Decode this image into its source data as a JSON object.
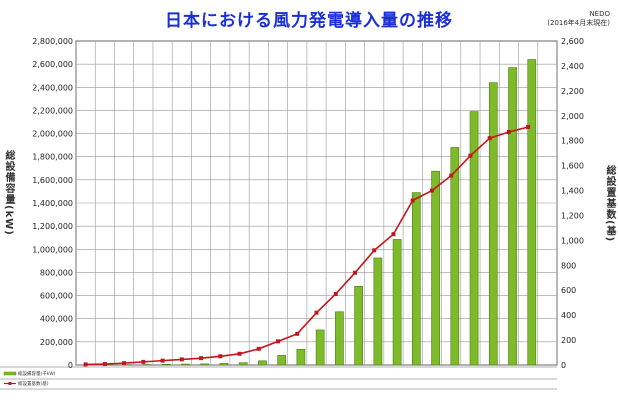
{
  "title": "日本における風力発電導入量の推移",
  "source": "NEDO\n(2016年4月末現在)",
  "chart_data": {
    "type": "bar",
    "title": "日本における風力発電導入量の推移",
    "ylabel_left": "総設備容量(kW)",
    "ylabel_right": "総設置基数(基)",
    "ylim_left": [
      0,
      2800000
    ],
    "ylim_right": [
      0,
      2600
    ],
    "yticks_left": [
      "0",
      "200,000",
      "400,000",
      "600,000",
      "800,000",
      "1,000,000",
      "1,200,000",
      "1,400,000",
      "1,600,000",
      "1,800,000",
      "2,000,000",
      "2,200,000",
      "2,400,000",
      "2,600,000",
      "2,800,000"
    ],
    "yticks_right": [
      "0",
      "200",
      "400",
      "600",
      "800",
      "1,000",
      "1,200",
      "1,400",
      "1,600",
      "1,800",
      "2,000",
      "2,200",
      "2,400",
      "2,600"
    ],
    "categories": [
      "",
      "",
      "",
      "",
      "",
      "",
      "",
      "",
      "",
      "",
      "",
      "",
      "",
      "",
      "",
      "",
      "",
      "",
      "",
      "",
      "",
      "",
      "",
      "",
      ""
    ],
    "series": [
      {
        "name": "総設備容量(kW)",
        "kind": "bar",
        "color": "#7dbb2a",
        "values": [
          1000,
          2000,
          3000,
          4000,
          6000,
          8000,
          10000,
          14000,
          20000,
          36000,
          83000,
          136000,
          303000,
          460000,
          680000,
          925000,
          1085000,
          1490000,
          1675000,
          1880000,
          2190000,
          2440000,
          2570000,
          2640000,
          0
        ]
      },
      {
        "name": "総設置基数(基)",
        "kind": "line",
        "color": "#c4161c",
        "values": [
          5,
          8,
          15,
          25,
          35,
          45,
          55,
          70,
          90,
          130,
          190,
          250,
          420,
          570,
          740,
          920,
          1050,
          1320,
          1400,
          1520,
          1680,
          1820,
          1870,
          1910,
          null
        ]
      }
    ],
    "table_rows": [
      {
        "label": "総設備容量(千kW)",
        "values": [
          "",
          "",
          "",
          "",
          "",
          "",
          "",
          "",
          "",
          "",
          "",
          "",
          "",
          "",
          "",
          "",
          "",
          "",
          "",
          "",
          "",
          "",
          "",
          "",
          ""
        ]
      },
      {
        "label": "総設置基数(基)",
        "values": [
          "",
          "",
          "",
          "",
          "",
          "",
          "",
          "",
          "",
          "",
          "",
          "",
          "",
          "",
          "",
          "",
          "",
          "",
          "",
          "",
          "",
          "",
          "",
          "",
          ""
        ]
      }
    ],
    "grid": true,
    "legend": "bottom-left"
  }
}
